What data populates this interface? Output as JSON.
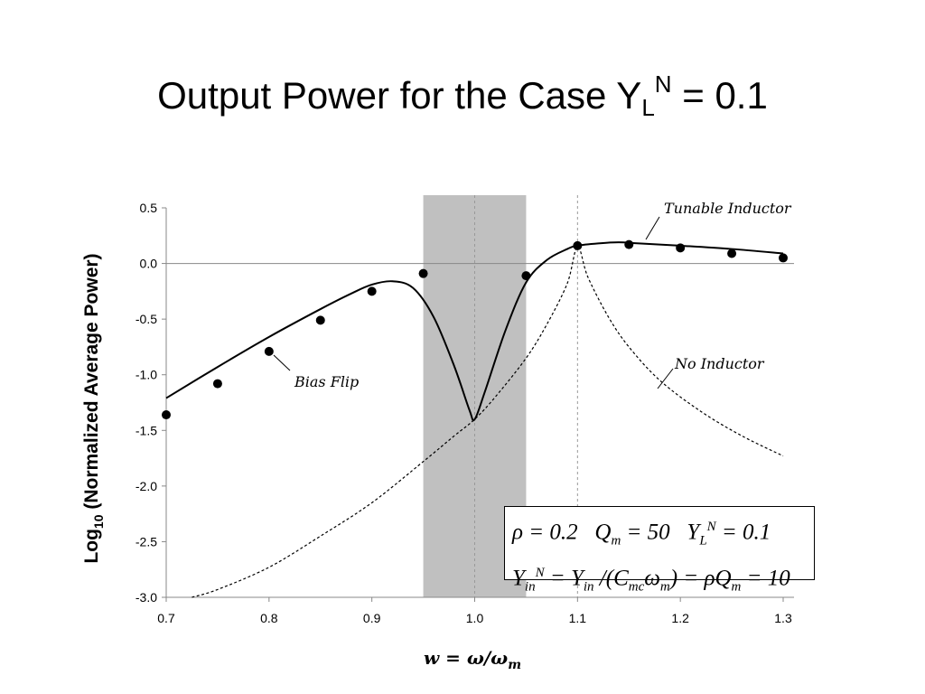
{
  "slide": {
    "title_main": "Output Power for the Case Y",
    "title_sub": "L",
    "title_sup": "N",
    "title_tail": " = 0.1"
  },
  "params": {
    "line1": "ρ = 0.2    Q_m = 50    Y_L^N = 0.1",
    "line2": "Y_in^N = Y_in /(C_mc ω_m) = ρQ_m = 10"
  },
  "chart_data": {
    "type": "line",
    "title": "",
    "xlabel": "w = ω/ω_m",
    "ylabel": "Log10 (Normalized Average Power)",
    "xlim": [
      0.7,
      1.3
    ],
    "ylim": [
      -3.0,
      0.5
    ],
    "x_ticks": [
      "0.7",
      "0.8",
      "0.9",
      "1.0",
      "1.1",
      "1.2",
      "1.3"
    ],
    "y_ticks": [
      "0.5",
      "0.0",
      "-0.5",
      "-1.0",
      "-1.5",
      "-2.0",
      "-2.5",
      "-3.0"
    ],
    "shaded_band": {
      "x_from": 0.95,
      "x_to": 1.05,
      "color": "#c0c0c0"
    },
    "vertical_dashed_lines": [
      1.0,
      1.1
    ],
    "series": [
      {
        "name": "Tunable Inductor",
        "style": "solid",
        "x": [
          0.7,
          0.75,
          0.8,
          0.85,
          0.88,
          0.9,
          0.92,
          0.94,
          0.96,
          0.98,
          0.995,
          1.0,
          1.01,
          1.03,
          1.05,
          1.07,
          1.09,
          1.1,
          1.12,
          1.14,
          1.16,
          1.2,
          1.25,
          1.3
        ],
        "values": [
          -1.21,
          -0.93,
          -0.66,
          -0.41,
          -0.27,
          -0.19,
          -0.16,
          -0.22,
          -0.48,
          -0.92,
          -1.32,
          -1.4,
          -1.15,
          -0.6,
          -0.17,
          0.03,
          0.13,
          0.16,
          0.18,
          0.19,
          0.18,
          0.16,
          0.13,
          0.09
        ]
      },
      {
        "name": "No Inductor",
        "style": "dashed",
        "x": [
          0.725,
          0.75,
          0.8,
          0.85,
          0.9,
          0.95,
          0.98,
          1.0,
          1.02,
          1.05,
          1.07,
          1.09,
          1.1,
          1.11,
          1.13,
          1.15,
          1.18,
          1.22,
          1.26,
          1.3
        ],
        "values": [
          -3.0,
          -2.93,
          -2.73,
          -2.45,
          -2.15,
          -1.78,
          -1.55,
          -1.4,
          -1.2,
          -0.85,
          -0.55,
          -0.18,
          0.15,
          -0.12,
          -0.48,
          -0.75,
          -1.05,
          -1.33,
          -1.55,
          -1.73
        ]
      },
      {
        "name": "Bias Flip",
        "style": "markers",
        "x": [
          0.7,
          0.75,
          0.8,
          0.85,
          0.9,
          0.95,
          1.05,
          1.1,
          1.15,
          1.2,
          1.25,
          1.3
        ],
        "values": [
          -1.36,
          -1.08,
          -0.79,
          -0.51,
          -0.25,
          -0.09,
          -0.11,
          0.16,
          0.17,
          0.14,
          0.09,
          0.05
        ]
      }
    ],
    "annotations": [
      "Tunable Inductor",
      "No Inductor",
      "Bias Flip"
    ]
  }
}
